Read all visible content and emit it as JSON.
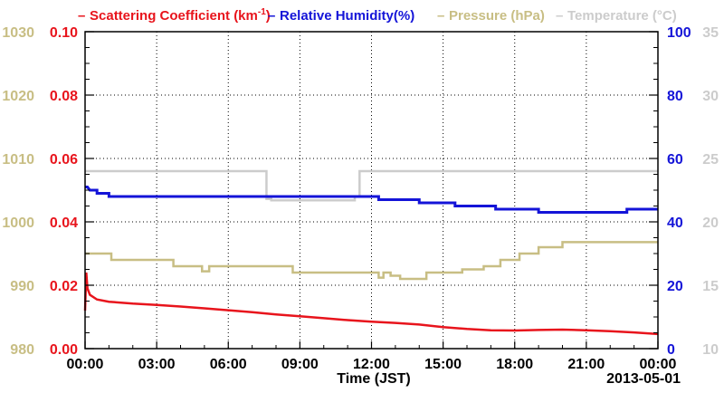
{
  "chart_data": {
    "type": "line",
    "title": "",
    "xlabel": "Time (JST)",
    "date_label": "2013-05-01",
    "x_ticks": [
      "00:00",
      "03:00",
      "06:00",
      "09:00",
      "12:00",
      "15:00",
      "18:00",
      "21:00",
      "00:00"
    ],
    "x_range_hours": [
      0,
      24
    ],
    "grid": true,
    "legend": [
      {
        "id": "scat",
        "text": "Scattering Coefficient (km",
        "sup": "-1",
        "close": ")",
        "color": "#e8141c"
      },
      {
        "id": "rh",
        "text": "Relative Humidity(%)",
        "color": "#1414d8"
      },
      {
        "id": "pres",
        "text": "Pressure (hPa)",
        "color": "#c8be84"
      },
      {
        "id": "temp",
        "text": "Temperature (°C)",
        "color": "#cccccc"
      }
    ],
    "axes": {
      "scat": {
        "min": 0,
        "max": 0.1,
        "ticks": [
          "0.00",
          "0.02",
          "0.04",
          "0.06",
          "0.08",
          "0.10"
        ],
        "color": "#e8141c"
      },
      "rh": {
        "min": 0,
        "max": 100,
        "ticks": [
          "0",
          "20",
          "40",
          "60",
          "80",
          "100"
        ],
        "color": "#1414d8"
      },
      "pres": {
        "min": 980,
        "max": 1030,
        "ticks": [
          "980",
          "990",
          "1000",
          "1010",
          "1020",
          "1030"
        ],
        "color": "#c8be84"
      },
      "temp": {
        "min": 10,
        "max": 35,
        "ticks": [
          "10",
          "15",
          "20",
          "25",
          "30",
          "35"
        ],
        "color": "#cccccc"
      }
    },
    "series": [
      {
        "name": "Scattering Coefficient (km-1)",
        "axis": "scat",
        "color": "#e8141c",
        "x": [
          0,
          0.05,
          0.1,
          0.2,
          0.5,
          1,
          2,
          3,
          4,
          5,
          6,
          7,
          8,
          9,
          10,
          11,
          12,
          13,
          14,
          15,
          16,
          17,
          18,
          19,
          20,
          21,
          22,
          23,
          24
        ],
        "y": [
          0.012,
          0.024,
          0.019,
          0.017,
          0.0155,
          0.0148,
          0.0142,
          0.0138,
          0.0133,
          0.0127,
          0.0121,
          0.0115,
          0.0108,
          0.0102,
          0.0096,
          0.009,
          0.0085,
          0.0081,
          0.0076,
          0.0068,
          0.0062,
          0.0058,
          0.0057,
          0.0059,
          0.006,
          0.0058,
          0.0055,
          0.0051,
          0.0046
        ]
      },
      {
        "name": "Relative Humidity(%)",
        "axis": "rh",
        "color": "#1414d8",
        "x": [
          0,
          0.1,
          0.2,
          0.5,
          0.5,
          1.0,
          1.0,
          12.3,
          12.3,
          14.0,
          14.0,
          15.5,
          15.5,
          17.2,
          17.2,
          19.0,
          19.0,
          21.5,
          21.5,
          22.7,
          22.7,
          24
        ],
        "y": [
          51,
          51,
          50,
          50,
          49,
          49,
          48,
          48,
          47,
          47,
          46,
          46,
          45,
          45,
          44,
          44,
          43,
          43,
          43,
          43,
          44,
          44
        ]
      },
      {
        "name": "Pressure (hPa)",
        "axis": "pres",
        "color": "#c8be84",
        "x": [
          0,
          1.1,
          1.1,
          3.7,
          3.7,
          4.9,
          4.9,
          5.2,
          5.2,
          8.7,
          8.7,
          12.3,
          12.3,
          12.5,
          12.5,
          12.8,
          12.8,
          13.2,
          13.2,
          14.3,
          14.3,
          15.8,
          15.8,
          16.7,
          16.7,
          17.4,
          17.4,
          18.2,
          18.2,
          19.0,
          19.0,
          20.0,
          20.0,
          24
        ],
        "y": [
          995,
          995,
          994,
          994,
          993,
          993,
          992.2,
          992.2,
          993,
          993,
          992,
          992,
          991.2,
          991.2,
          992,
          992,
          991.5,
          991.5,
          991,
          991,
          992,
          992,
          992.5,
          992.5,
          993,
          993,
          994,
          994,
          995,
          995,
          996,
          996,
          996.8,
          996.8
        ]
      },
      {
        "name": "Temperature (°C)",
        "axis": "temp",
        "color": "#cccccc",
        "x": [
          0,
          7.6,
          7.6,
          7.8,
          7.8,
          11.3,
          11.3,
          11.5,
          11.5,
          24
        ],
        "y": [
          24,
          24,
          21.8,
          21.8,
          21.7,
          21.7,
          22,
          22,
          24,
          24
        ]
      }
    ]
  }
}
